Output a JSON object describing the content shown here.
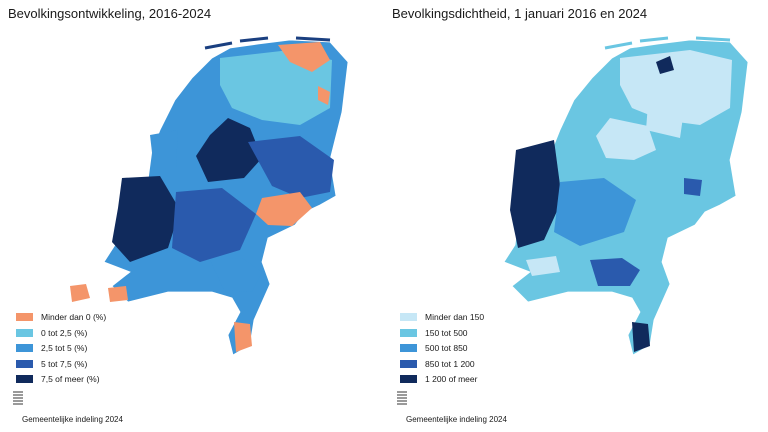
{
  "panels": [
    {
      "title": "Bevolkingsontwikkeling, 2016-2024",
      "legend": [
        {
          "label": "Minder dan 0 (%)",
          "color": "#f4956a"
        },
        {
          "label": "0 tot 2,5 (%)",
          "color": "#6ac6e2"
        },
        {
          "label": "2,5 tot 5 (%)",
          "color": "#3d95d8"
        },
        {
          "label": "5 tot 7,5 (%)",
          "color": "#2a5aad"
        },
        {
          "label": "7,5 of meer (%)",
          "color": "#102a5c"
        }
      ],
      "footer": "Gemeentelijke indeling 2024"
    },
    {
      "title": "Bevolkingsdichtheid, 1 januari 2016 en 2024",
      "legend": [
        {
          "label": "Minder dan 150",
          "color": "#c6e7f6"
        },
        {
          "label": "150 tot 500",
          "color": "#6ac6e2"
        },
        {
          "label": "500 tot 850",
          "color": "#3d95d8"
        },
        {
          "label": "850 tot 1 200",
          "color": "#2a5aad"
        },
        {
          "label": "1 200 of meer",
          "color": "#102a5c"
        }
      ],
      "footer": "Gemeentelijke indeling 2024"
    }
  ]
}
